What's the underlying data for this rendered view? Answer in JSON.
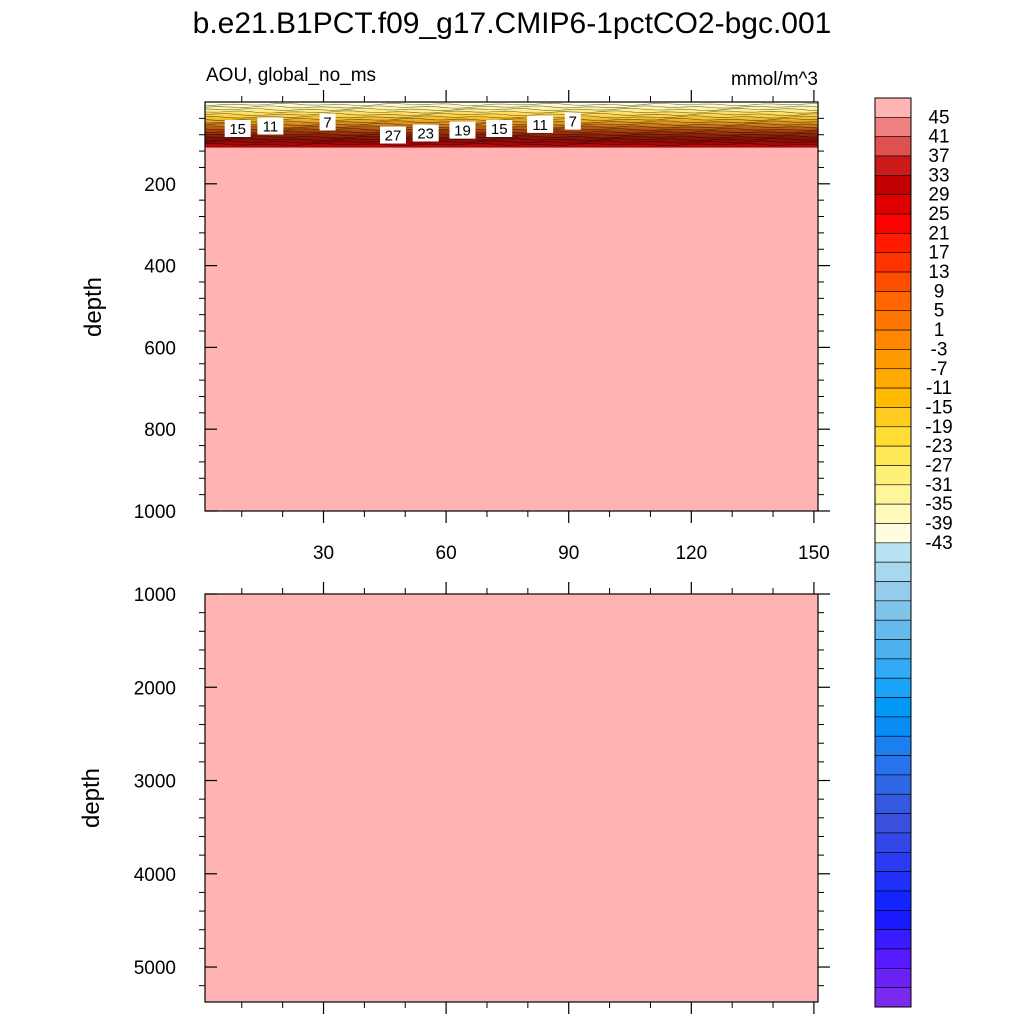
{
  "title": "b.e21.B1PCT.f09_g17.CMIP6-1pctCO2-bgc.001",
  "chart_data": [
    {
      "type": "heatmap",
      "panel": "upper",
      "variable": "AOU, global_no_ms",
      "units": "mmol/m^3",
      "ylabel": "depth",
      "xlabel": "",
      "xlim": [
        1,
        151
      ],
      "ylim": [
        0,
        1000
      ],
      "y_inverted": true,
      "xticks": [
        30,
        60,
        90,
        120,
        150
      ],
      "yticks": [
        200,
        400,
        600,
        800,
        1000
      ],
      "fill_value_below_surface": 47,
      "surface_layer_depth_range": [
        0,
        110
      ],
      "contour_labels": [
        {
          "x": 9,
          "y": 66,
          "value": "15"
        },
        {
          "x": 17,
          "y": 60,
          "value": "11"
        },
        {
          "x": 31,
          "y": 50,
          "value": "7"
        },
        {
          "x": 47,
          "y": 82,
          "value": "27"
        },
        {
          "x": 55,
          "y": 77,
          "value": "23"
        },
        {
          "x": 64,
          "y": 70,
          "value": "19"
        },
        {
          "x": 73,
          "y": 66,
          "value": "15"
        },
        {
          "x": 83,
          "y": 56,
          "value": "11"
        },
        {
          "x": 91,
          "y": 48,
          "value": "7"
        }
      ]
    },
    {
      "type": "heatmap",
      "panel": "lower",
      "ylabel": "depth",
      "ylim": [
        1000,
        5375
      ],
      "y_inverted": true,
      "yticks": [
        1000,
        2000,
        3000,
        4000,
        5000
      ],
      "fill_value": 47
    }
  ],
  "colorbar": {
    "labels": [
      "45",
      "41",
      "37",
      "33",
      "29",
      "25",
      "21",
      "17",
      "13",
      "9",
      "5",
      "1",
      "-3",
      "-7",
      "-11",
      "-15",
      "-19",
      "-23",
      "-27",
      "-31",
      "-35",
      "-39",
      "-43"
    ],
    "colors": [
      "#ffb3b3",
      "#f08080",
      "#e05050",
      "#cc1a1a",
      "#c00000",
      "#e00000",
      "#ff0000",
      "#ff1a00",
      "#ff3300",
      "#ff4d00",
      "#ff6600",
      "#ff7700",
      "#ff8800",
      "#ff9900",
      "#ffaa00",
      "#ffbb00",
      "#ffcc22",
      "#ffdd33",
      "#ffe855",
      "#fff077",
      "#fff599",
      "#fffabb",
      "#fffde0",
      "#b8e2f2",
      "#a8d8ee",
      "#94cdeb",
      "#80c4ea",
      "#66bbee",
      "#4fb0f0",
      "#33aaf5",
      "#1aa3f8",
      "#0099f5",
      "#0a8cf5",
      "#1a80f0",
      "#2673ed",
      "#2e66e6",
      "#3359e0",
      "#3850dd",
      "#3346e8",
      "#2a3cf2",
      "#1f30f8",
      "#1424ff",
      "#1a1aff",
      "#3a1aff",
      "#551aff",
      "#6a22f5",
      "#7a2aee"
    ]
  }
}
